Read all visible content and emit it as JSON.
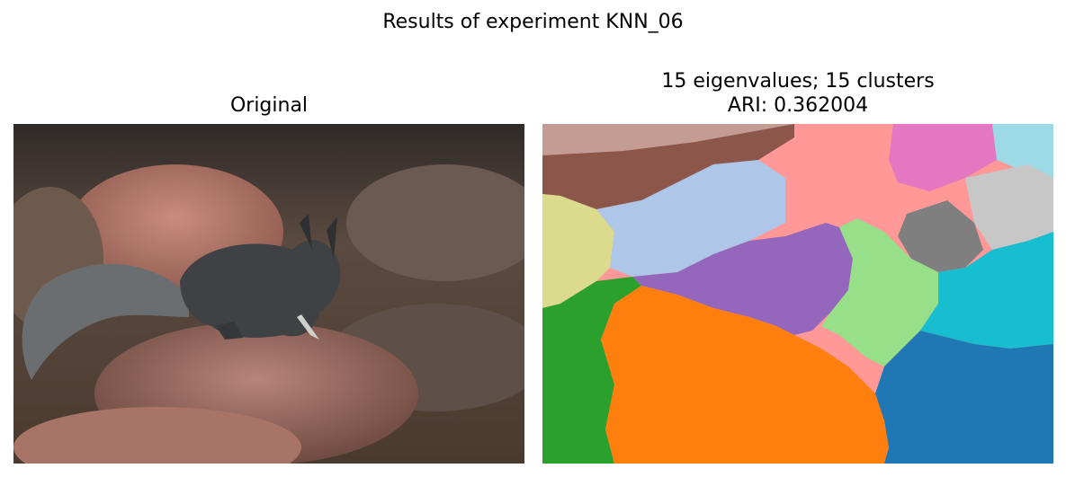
{
  "figure": {
    "suptitle": "Results of experiment KNN_06"
  },
  "left_panel": {
    "title": "Original"
  },
  "right_panel": {
    "title_line1": "15 eigenvalues; 15 clusters",
    "title_line2": "ARI: 0.362004"
  },
  "cluster_colors": [
    "#1f77b4",
    "#ff7f0e",
    "#2ca02c",
    "#98df8a",
    "#9467bd",
    "#aec7e8",
    "#c49c94",
    "#8c564b",
    "#ff9896",
    "#e377c2",
    "#9edae5",
    "#c7c7c7",
    "#7f7f7f",
    "#17becf",
    "#dbdb8d"
  ]
}
